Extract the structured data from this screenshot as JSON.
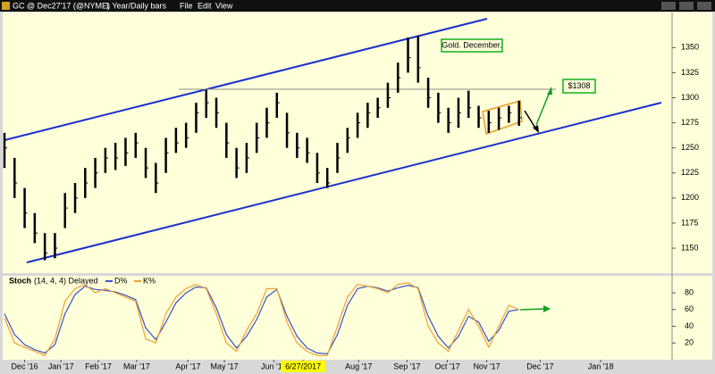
{
  "toolbar": {
    "symbol": "GC @ Dec27'17 (@NYME)",
    "interval": "1 Year/Daily bars",
    "menu": [
      "File",
      "Edit",
      "View"
    ]
  },
  "chart_data": [
    {
      "type": "ohlc",
      "annotations": [
        "Gold. December.",
        "$1308"
      ],
      "x": [
        0,
        1,
        2,
        3,
        4,
        5,
        6,
        7,
        8,
        9,
        10,
        11,
        12,
        13,
        14,
        15,
        16,
        17,
        18,
        19,
        20,
        21,
        22,
        23,
        24,
        25,
        26,
        27,
        28,
        29,
        30,
        31,
        32,
        33,
        34,
        35,
        36,
        37,
        38,
        39,
        40,
        41,
        42,
        43,
        44,
        45,
        46,
        47,
        48,
        49,
        50,
        51
      ],
      "high": [
        1265,
        1240,
        1210,
        1185,
        1165,
        1165,
        1205,
        1215,
        1230,
        1240,
        1250,
        1255,
        1260,
        1265,
        1250,
        1235,
        1260,
        1270,
        1275,
        1295,
        1308,
        1300,
        1275,
        1250,
        1255,
        1275,
        1290,
        1305,
        1285,
        1265,
        1260,
        1245,
        1230,
        1255,
        1270,
        1285,
        1295,
        1300,
        1315,
        1335,
        1360,
        1362,
        1320,
        1305,
        1290,
        1300,
        1307,
        1292,
        1287,
        1290,
        1292,
        1297
      ],
      "low": [
        1230,
        1200,
        1170,
        1155,
        1138,
        1140,
        1170,
        1185,
        1200,
        1210,
        1225,
        1228,
        1232,
        1240,
        1220,
        1205,
        1225,
        1245,
        1250,
        1265,
        1280,
        1270,
        1240,
        1220,
        1225,
        1245,
        1260,
        1280,
        1250,
        1240,
        1235,
        1215,
        1210,
        1225,
        1245,
        1260,
        1270,
        1280,
        1290,
        1305,
        1325,
        1315,
        1290,
        1275,
        1265,
        1270,
        1280,
        1270,
        1265,
        1268,
        1275,
        1272
      ],
      "close": [
        1250,
        1215,
        1185,
        1165,
        1145,
        1150,
        1190,
        1200,
        1215,
        1225,
        1240,
        1240,
        1245,
        1255,
        1230,
        1215,
        1245,
        1255,
        1260,
        1285,
        1295,
        1285,
        1255,
        1230,
        1240,
        1260,
        1275,
        1295,
        1265,
        1250,
        1245,
        1225,
        1215,
        1240,
        1260,
        1275,
        1285,
        1290,
        1300,
        1320,
        1340,
        1330,
        1300,
        1285,
        1275,
        1285,
        1290,
        1280,
        1275,
        1280,
        1285,
        1280
      ],
      "color": "#000000",
      "xlim": [
        0,
        66
      ],
      "ylim": [
        1126,
        1385
      ],
      "yticks": [
        1150,
        1175,
        1200,
        1225,
        1250,
        1275,
        1300,
        1325,
        1350
      ]
    },
    {
      "type": "line",
      "title": "Stoch",
      "subtitle": "(14, 4, 4) Delayed",
      "xlim": [
        0,
        66
      ],
      "ylim": [
        0,
        95
      ],
      "yticks": [
        20,
        40,
        60,
        80
      ],
      "x": [
        0,
        1,
        2,
        3,
        4,
        5,
        6,
        7,
        8,
        9,
        10,
        11,
        12,
        13,
        14,
        15,
        16,
        17,
        18,
        19,
        20,
        21,
        22,
        23,
        24,
        25,
        26,
        27,
        28,
        29,
        30,
        31,
        32,
        33,
        34,
        35,
        36,
        37,
        38,
        39,
        40,
        41,
        42,
        43,
        44,
        45,
        46,
        47,
        48,
        49,
        50,
        51
      ],
      "series": [
        {
          "name": "D%",
          "color": "#3a52c8",
          "values": [
            55,
            30,
            18,
            12,
            8,
            18,
            55,
            78,
            88,
            84,
            83,
            81,
            77,
            72,
            38,
            24,
            45,
            68,
            80,
            87,
            86,
            62,
            30,
            14,
            28,
            48,
            75,
            84,
            52,
            28,
            14,
            8,
            7,
            30,
            65,
            85,
            88,
            86,
            82,
            86,
            89,
            86,
            52,
            28,
            14,
            28,
            52,
            45,
            22,
            35,
            58,
            60
          ]
        },
        {
          "name": "K%",
          "color": "#f0a030",
          "values": [
            50,
            20,
            15,
            10,
            5,
            25,
            70,
            85,
            90,
            80,
            85,
            80,
            75,
            70,
            25,
            20,
            55,
            75,
            85,
            90,
            85,
            55,
            20,
            10,
            35,
            55,
            85,
            85,
            45,
            20,
            10,
            5,
            5,
            40,
            75,
            90,
            88,
            85,
            80,
            90,
            92,
            85,
            40,
            20,
            10,
            35,
            60,
            40,
            15,
            40,
            65,
            60
          ]
        }
      ]
    },
    {
      "type": "axis",
      "xticks": [
        {
          "value": 2,
          "label": "Dec '16"
        },
        {
          "value": 5.6,
          "label": "Jan '17"
        },
        {
          "value": 9.3,
          "label": "Feb '17"
        },
        {
          "value": 13.1,
          "label": "Mar '17"
        },
        {
          "value": 18.2,
          "label": "Apr '17"
        },
        {
          "value": 21.8,
          "label": "May '17"
        },
        {
          "value": 26.7,
          "label": "Jun '17"
        },
        {
          "value": 29.6,
          "label": "6/27/2017"
        },
        {
          "value": 35.1,
          "label": "Aug '17"
        },
        {
          "value": 39.9,
          "label": "Sep '17"
        },
        {
          "value": 43.9,
          "label": "Oct '17"
        },
        {
          "value": 47.8,
          "label": "Nov '17"
        },
        {
          "value": 53.1,
          "label": "Dec '17"
        },
        {
          "value": 59.1,
          "label": "Jan '18"
        }
      ],
      "xlim": [
        0,
        66
      ]
    }
  ]
}
